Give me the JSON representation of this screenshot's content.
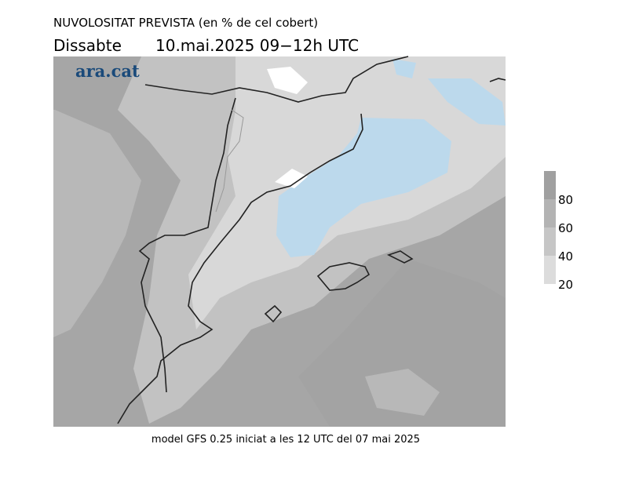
{
  "header": {
    "title": "NUVOLOSITAT PREVISTA (en % de cel cobert)",
    "day": "Dissabte",
    "date": "10.mai.2025 09−12h UTC"
  },
  "brand": "ara.cat",
  "legend": {
    "levels": [
      20,
      40,
      60,
      80
    ]
  },
  "footer": "model GFS 0.25 iniciat a les 12 UTC del 07 mai 2025"
}
